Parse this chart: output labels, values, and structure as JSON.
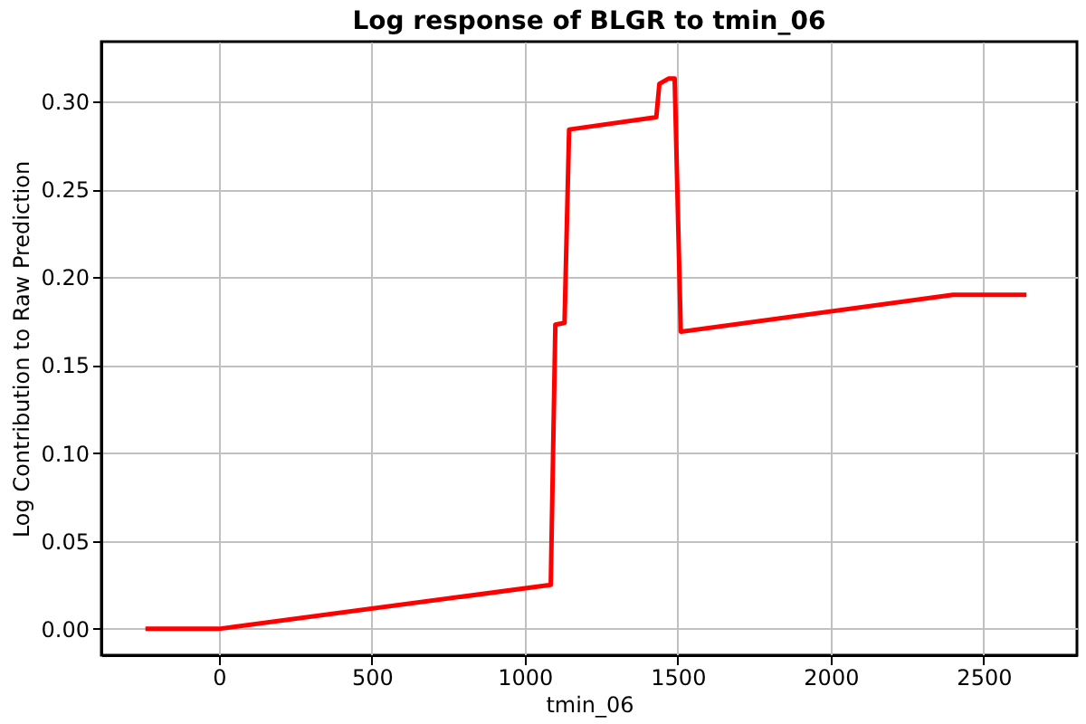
{
  "chart_data": {
    "type": "line",
    "title": "Log response of BLGR to tmin_06",
    "xlabel": "tmin_06",
    "ylabel": "Log Contribution to Raw Prediction",
    "x": [
      -240,
      0,
      1085,
      1100,
      1130,
      1145,
      1430,
      1440,
      1470,
      1490,
      1510,
      2400,
      2640
    ],
    "series": [
      {
        "color": "#ff0000",
        "values": [
          0,
          0,
          0.025,
          0.173,
          0.174,
          0.284,
          0.291,
          0.31,
          0.313,
          0.313,
          0.169,
          0.19,
          0.19
        ]
      }
    ],
    "xlim": [
      -384,
      2805
    ],
    "ylim": [
      -0.015,
      0.334
    ],
    "xticks": [
      0,
      500,
      1000,
      1500,
      2000,
      2500
    ],
    "yticks": [
      {
        "value": 0,
        "label": "0.00"
      },
      {
        "value": 0.05,
        "label": "0.05"
      },
      {
        "value": 0.1,
        "label": "0.10"
      },
      {
        "value": 0.15,
        "label": "0.15"
      },
      {
        "value": 0.2,
        "label": "0.20"
      },
      {
        "value": 0.25,
        "label": "0.25"
      },
      {
        "value": 0.3,
        "label": "0.30"
      }
    ],
    "grid": true,
    "marker": "none",
    "line_style": "solid"
  }
}
